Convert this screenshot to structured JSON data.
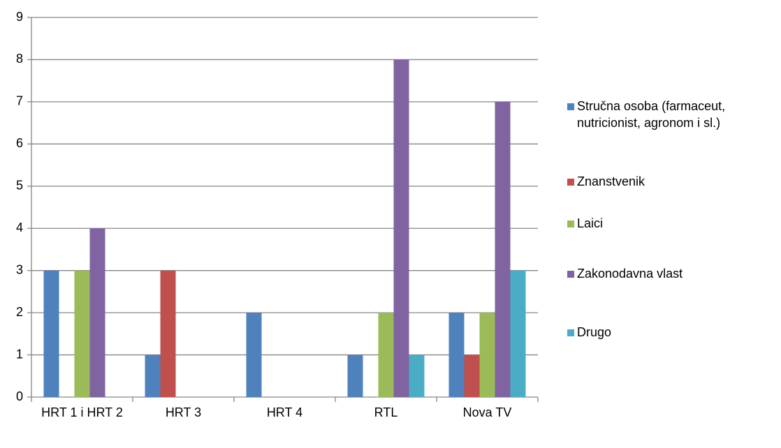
{
  "chart_data": {
    "type": "bar",
    "categories": [
      "HRT 1 i HRT 2",
      "HRT 3",
      "HRT 4",
      "RTL",
      "Nova TV"
    ],
    "series": [
      {
        "name": "Stručna osoba (farmaceut, nutricionist, agronom i sl.)",
        "color": "#4f81bd",
        "values": [
          3,
          1,
          2,
          1,
          2
        ]
      },
      {
        "name": "Znanstvenik",
        "color": "#c0504d",
        "values": [
          0,
          3,
          0,
          0,
          1
        ]
      },
      {
        "name": "Laici",
        "color": "#9bbb59",
        "values": [
          3,
          0,
          0,
          2,
          2
        ]
      },
      {
        "name": "Zakonodavna vlast",
        "color": "#8064a2",
        "values": [
          4,
          0,
          0,
          8,
          7
        ]
      },
      {
        "name": "Drugo",
        "color": "#4bacc6",
        "values": [
          0,
          0,
          0,
          1,
          3
        ]
      }
    ],
    "ylim": [
      0,
      9
    ],
    "yticks": [
      0,
      1,
      2,
      3,
      4,
      5,
      6,
      7,
      8,
      9
    ],
    "grid": true,
    "legend": "right"
  }
}
